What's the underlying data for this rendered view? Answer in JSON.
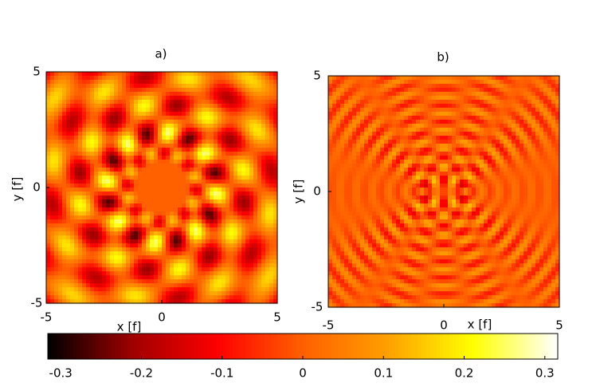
{
  "chart_data": [
    {
      "type": "heatmap",
      "title": "a)",
      "xlabel": "x [f]",
      "ylabel": "y [f]",
      "xlim": [
        -5,
        5
      ],
      "ylim": [
        -5,
        5
      ],
      "xticks": [
        -5,
        0,
        5
      ],
      "yticks": [
        -5,
        0,
        5
      ]
    },
    {
      "type": "heatmap",
      "title": "b)",
      "xlabel": "x [f]",
      "ylabel": "y [f]",
      "xlim": [
        -5,
        5
      ],
      "ylim": [
        -5,
        5
      ],
      "xticks": [
        -5,
        0,
        5
      ],
      "yticks": [
        -5,
        0,
        5
      ]
    },
    {
      "type": "colorbar",
      "clim": [
        -0.316,
        0.316
      ],
      "ticks": [
        -0.3,
        -0.2,
        -0.1,
        0,
        0.1,
        0.2,
        0.3
      ],
      "colormap": [
        "#000000",
        "#a00000",
        "#ff0000",
        "#ff6000",
        "#ffa000",
        "#ffff00",
        "#ffffff"
      ]
    }
  ]
}
